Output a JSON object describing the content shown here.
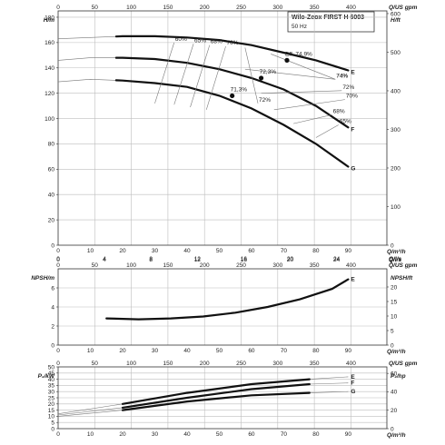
{
  "title": "Wilo-Zeox FIRST H 6003",
  "subtitle": "50 Hz",
  "axes": {
    "q_m3h": {
      "label": "Q/m³/h",
      "ticks": [
        0,
        10,
        20,
        30,
        40,
        50,
        60,
        70,
        80,
        90
      ]
    },
    "q_gpm": {
      "label": "Q/US gpm",
      "ticks": [
        0,
        50,
        100,
        150,
        200,
        250,
        300,
        350,
        400
      ]
    },
    "q_ls": {
      "label": "Q/l/s",
      "ticks": [
        0,
        4,
        8,
        12,
        16,
        20,
        24
      ]
    },
    "head": {
      "label": "H/m",
      "label_right": "H/ft",
      "ticks": [
        0,
        20,
        40,
        60,
        80,
        100,
        120,
        140,
        160,
        180
      ],
      "ticks_right": [
        0,
        100,
        200,
        300,
        400,
        500,
        600
      ]
    },
    "npsh": {
      "label": "NPSH/m",
      "label_right": "NPSH/ft",
      "ticks": [
        0,
        2,
        4,
        6
      ],
      "ticks_right": [
        0,
        5,
        10,
        15,
        20
      ]
    },
    "power": {
      "label": "P₂/kW",
      "label_right": "P₂/hp",
      "ticks": [
        0,
        5,
        10,
        15,
        20,
        25,
        30,
        35,
        40,
        45,
        50
      ],
      "ticks_right": [
        0,
        20,
        40,
        60
      ]
    }
  },
  "chart_data": [
    {
      "type": "line",
      "title": "Wilo-Zeox FIRST H 6003",
      "subtitle": "50 Hz",
      "xlabel": "Q/m³/h",
      "ylabel": "H/m",
      "xlim": [
        0,
        102
      ],
      "ylim": [
        0,
        185
      ],
      "series": [
        {
          "name": "E",
          "x": [
            0,
            10,
            20,
            30,
            40,
            50,
            60,
            70,
            80,
            90
          ],
          "y": [
            163,
            164,
            165,
            165,
            164,
            162,
            158,
            152,
            146,
            138
          ]
        },
        {
          "name": "F",
          "x": [
            0,
            10,
            20,
            30,
            40,
            50,
            60,
            70,
            80,
            90
          ],
          "y": [
            146,
            148,
            148,
            147,
            144,
            139,
            132,
            123,
            110,
            93
          ]
        },
        {
          "name": "G",
          "x": [
            0,
            10,
            20,
            30,
            40,
            50,
            60,
            70,
            80,
            90
          ],
          "y": [
            129,
            131,
            130,
            128,
            125,
            118,
            108,
            95,
            80,
            62
          ]
        }
      ],
      "iso_efficiency": [
        {
          "label": "60%",
          "x1": 30,
          "y1": 112,
          "x2": 36,
          "y2": 160
        },
        {
          "label": "65%",
          "x1": 36,
          "y1": 111,
          "x2": 42,
          "y2": 159
        },
        {
          "label": "68%",
          "x1": 41,
          "y1": 109,
          "x2": 47,
          "y2": 158
        },
        {
          "label": "70%",
          "x1": 46,
          "y1": 107,
          "x2": 52,
          "y2": 157
        },
        {
          "label": "72%",
          "x1": 62,
          "y1": 112,
          "x2": 58,
          "y2": 156
        },
        {
          "label": "74%",
          "x1": 86,
          "y1": 131,
          "x2": 66,
          "y2": 151
        },
        {
          "label": "74%",
          "x1": 86,
          "y1": 131,
          "x2": 58,
          "y2": 139
        },
        {
          "label": "72%",
          "x1": 88,
          "y1": 122,
          "x2": 63,
          "y2": 120
        },
        {
          "label": "70%",
          "x1": 89,
          "y1": 115,
          "x2": 67,
          "y2": 107
        },
        {
          "label": "68%",
          "x1": 85,
          "y1": 103,
          "x2": 73,
          "y2": 96
        },
        {
          "label": "65%",
          "x1": 87,
          "y1": 95,
          "x2": 80,
          "y2": 85
        }
      ],
      "points": [
        {
          "label": "Eff. 74,9%",
          "x": 71,
          "y": 146
        },
        {
          "label": "72,3%",
          "x": 63,
          "y": 132
        },
        {
          "label": "71,3%",
          "x": 54,
          "y": 118
        }
      ]
    },
    {
      "type": "line",
      "xlabel": "Q/m³/h",
      "ylabel": "NPSH/m",
      "xlim": [
        0,
        102
      ],
      "ylim": [
        0,
        8
      ],
      "series": [
        {
          "name": "E",
          "x": [
            15,
            25,
            35,
            45,
            55,
            65,
            75,
            85,
            90
          ],
          "y": [
            2.8,
            2.7,
            2.8,
            3.0,
            3.4,
            4.0,
            4.8,
            5.9,
            6.9
          ]
        }
      ]
    },
    {
      "type": "line",
      "xlabel": "Q/m³/h",
      "ylabel": "P₂/kW",
      "xlim": [
        0,
        102
      ],
      "ylim": [
        0,
        50
      ],
      "series": [
        {
          "name": "E",
          "x": [
            0,
            20,
            40,
            60,
            78,
            90
          ],
          "y": [
            12,
            20,
            29,
            36,
            40,
            42
          ]
        },
        {
          "name": "F",
          "x": [
            0,
            20,
            40,
            60,
            78,
            90
          ],
          "y": [
            11,
            17,
            25,
            32,
            36,
            37
          ]
        },
        {
          "name": "G",
          "x": [
            0,
            20,
            40,
            60,
            78,
            90
          ],
          "y": [
            10,
            15,
            22,
            27,
            29,
            30
          ]
        }
      ]
    }
  ]
}
